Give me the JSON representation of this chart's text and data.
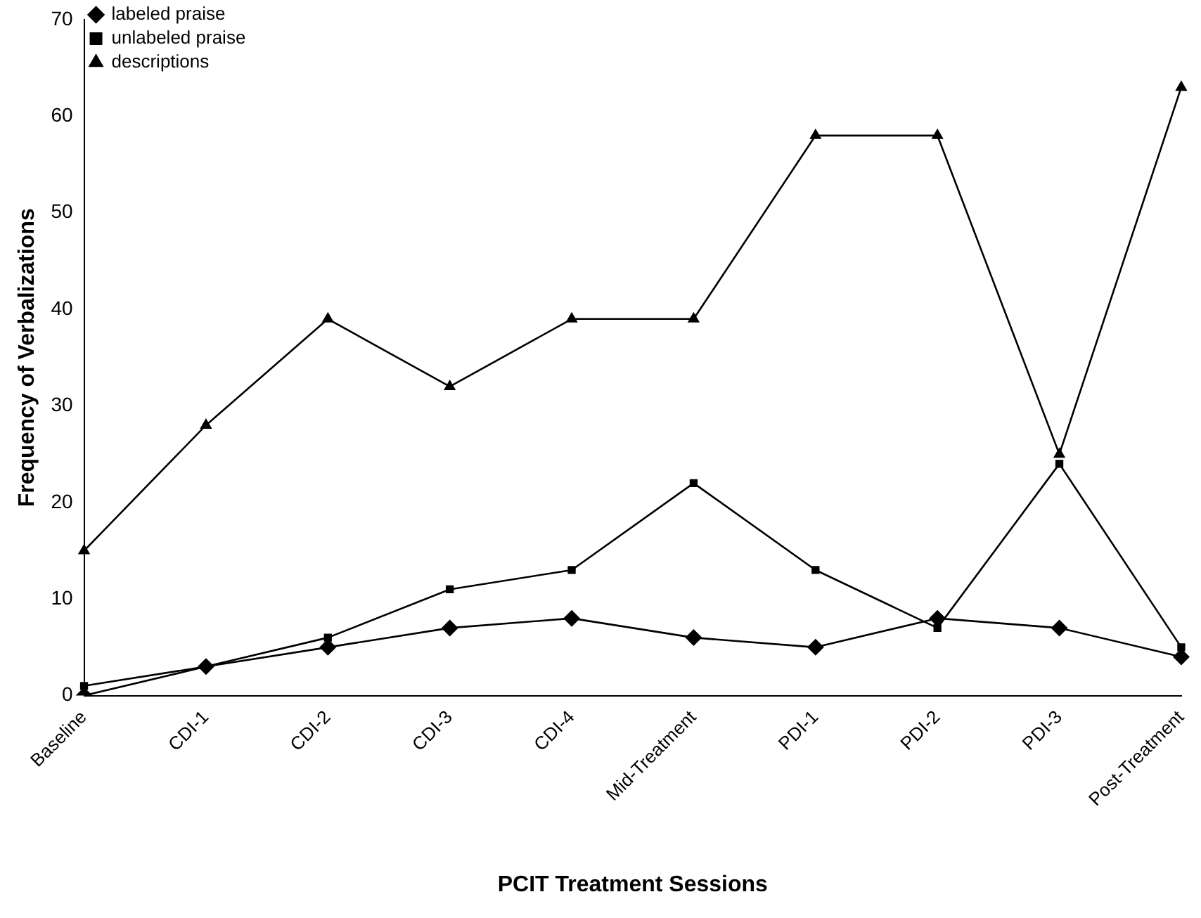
{
  "chart_data": {
    "type": "line",
    "xlabel": "PCIT Treatment Sessions",
    "ylabel": "Frequency of Verbalizations",
    "categories": [
      "Baseline",
      "CDI-1",
      "CDI-2",
      "CDI-3",
      "CDI-4",
      "Mid-Treatment",
      "PDI-1",
      "PDI-2",
      "PDI-3",
      "Post-Treatment"
    ],
    "series": [
      {
        "name": "labeled praise",
        "color": "#000000",
        "marker": "diamond",
        "values": [
          0,
          3,
          5,
          7,
          8,
          6,
          5,
          8,
          7,
          4
        ]
      },
      {
        "name": "unlabeled praise",
        "color": "#000000",
        "marker": "square",
        "values": [
          1,
          3,
          6,
          11,
          13,
          22,
          13,
          7,
          24,
          5
        ]
      },
      {
        "name": "descriptions",
        "color": "#000000",
        "marker": "triangle",
        "values": [
          15,
          28,
          39,
          32,
          39,
          39,
          58,
          58,
          25,
          63
        ]
      }
    ],
    "ylim": [
      0,
      70
    ],
    "yticks": [
      0,
      10,
      20,
      30,
      40,
      50,
      60,
      70
    ],
    "grid": false,
    "legend": "top left",
    "line_style": "solid"
  }
}
